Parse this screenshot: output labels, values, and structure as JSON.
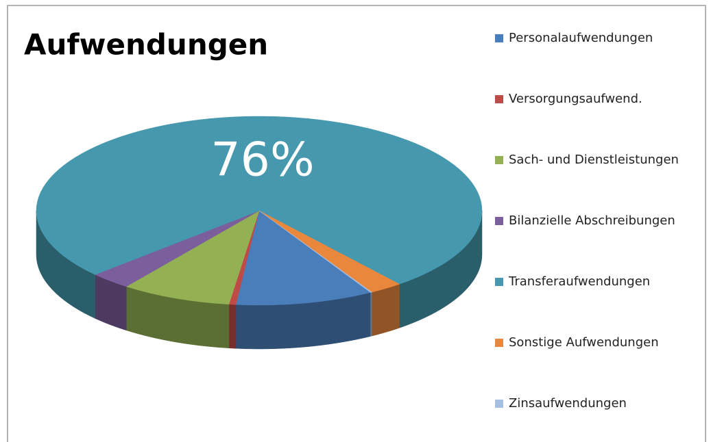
{
  "chart_data": {
    "type": "pie3d",
    "title": "Aufwendungen",
    "categories": [
      "Personalaufwendungen",
      "Versorgungsaufwend.",
      "Sach- und Dienstleistungen",
      "Bilanzielle Abschreibungen",
      "Transferaufwendungen",
      "Sonstige Aufwendungen",
      "Zinsaufwendungen"
    ],
    "values": [
      10,
      0.5,
      8,
      3,
      76,
      2.4,
      0.1
    ],
    "value_labels": [
      null,
      null,
      null,
      null,
      "76%",
      null,
      null
    ],
    "colors": [
      "#4a7ebb",
      "#be4b48",
      "#93b152",
      "#7b5e9c",
      "#4598ad",
      "#e9883d",
      "#a5bfe0"
    ],
    "legend": "right"
  }
}
